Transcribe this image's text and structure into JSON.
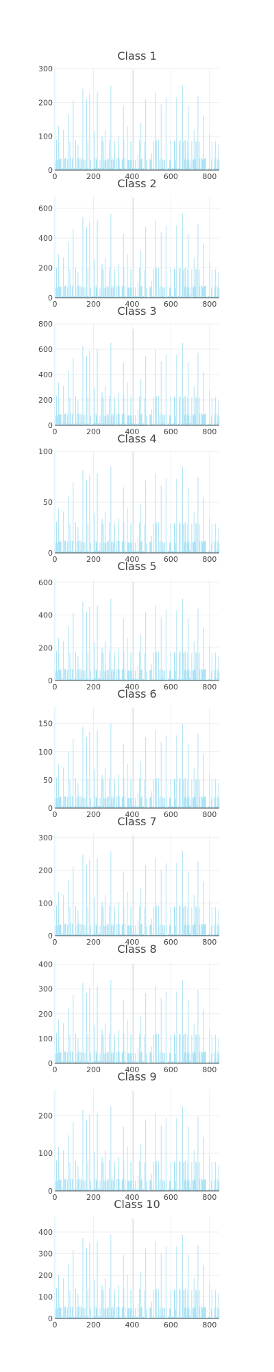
{
  "colors": {
    "bar": "#a9e2f5",
    "bar_strong": "#7fd2ee",
    "grid": "#eeeeee",
    "axis": "#444444",
    "text": "#444444"
  },
  "chart_data": [
    {
      "type": "bar",
      "title": "Class 1",
      "xlabel": "",
      "ylabel": "",
      "xlim": [
        0,
        850
      ],
      "ylim": [
        0,
        300
      ],
      "xticks": [
        0,
        200,
        400,
        600,
        800
      ],
      "yticks": [
        0,
        100,
        200,
        300
      ],
      "peak": 295,
      "scale": 1.0,
      "grid": true
    },
    {
      "type": "bar",
      "title": "Class 2",
      "xlabel": "",
      "ylabel": "",
      "xlim": [
        0,
        850
      ],
      "ylim": [
        0,
        680
      ],
      "xticks": [
        0,
        200,
        400,
        600,
        800
      ],
      "yticks": [
        0,
        200,
        400,
        600
      ],
      "peak": 665,
      "scale": 2.25,
      "grid": true
    },
    {
      "type": "bar",
      "title": "Class 3",
      "xlabel": "",
      "ylabel": "",
      "xlim": [
        0,
        850
      ],
      "ylim": [
        0,
        800
      ],
      "xticks": [
        0,
        200,
        400,
        600,
        800
      ],
      "yticks": [
        0,
        200,
        400,
        600,
        800
      ],
      "peak": 760,
      "scale": 2.6,
      "grid": true
    },
    {
      "type": "bar",
      "title": "Class 4",
      "xlabel": "",
      "ylabel": "",
      "xlim": [
        0,
        850
      ],
      "ylim": [
        0,
        100
      ],
      "xticks": [
        0,
        200,
        400,
        600,
        800
      ],
      "yticks": [
        0,
        50,
        100
      ],
      "peak": 100,
      "scale": 0.34,
      "grid": true
    },
    {
      "type": "bar",
      "title": "Class 5",
      "xlabel": "",
      "ylabel": "",
      "xlim": [
        0,
        850
      ],
      "ylim": [
        0,
        620
      ],
      "xticks": [
        0,
        200,
        400,
        600,
        800
      ],
      "yticks": [
        0,
        200,
        400,
        600
      ],
      "peak": 600,
      "scale": 2.0,
      "grid": true
    },
    {
      "type": "bar",
      "title": "Class 6",
      "xlabel": "",
      "ylabel": "",
      "xlim": [
        0,
        850
      ],
      "ylim": [
        0,
        180
      ],
      "xticks": [
        0,
        200,
        400,
        600,
        800
      ],
      "yticks": [
        0,
        50,
        100,
        150
      ],
      "peak": 178,
      "scale": 0.6,
      "grid": true
    },
    {
      "type": "bar",
      "title": "Class 7",
      "xlabel": "",
      "ylabel": "",
      "xlim": [
        0,
        850
      ],
      "ylim": [
        0,
        310
      ],
      "xticks": [
        0,
        200,
        400,
        600,
        800
      ],
      "yticks": [
        0,
        100,
        200,
        300
      ],
      "peak": 305,
      "scale": 1.03,
      "grid": true
    },
    {
      "type": "bar",
      "title": "Class 8",
      "xlabel": "",
      "ylabel": "",
      "xlim": [
        0,
        850
      ],
      "ylim": [
        0,
        410
      ],
      "xticks": [
        0,
        200,
        400,
        600,
        800
      ],
      "yticks": [
        0,
        100,
        200,
        300,
        400
      ],
      "peak": 400,
      "scale": 1.35,
      "grid": true
    },
    {
      "type": "bar",
      "title": "Class 9",
      "xlabel": "",
      "ylabel": "",
      "xlim": [
        0,
        850
      ],
      "ylim": [
        0,
        270
      ],
      "xticks": [
        0,
        200,
        400,
        600,
        800
      ],
      "yticks": [
        0,
        100,
        200
      ],
      "peak": 265,
      "scale": 0.9,
      "grid": true
    },
    {
      "type": "bar",
      "title": "Class 10",
      "xlabel": "",
      "ylabel": "",
      "xlim": [
        0,
        850
      ],
      "ylim": [
        0,
        470
      ],
      "xticks": [
        0,
        200,
        400,
        600,
        800
      ],
      "yticks": [
        0,
        100,
        200,
        300,
        400
      ],
      "peak": 460,
      "scale": 1.55,
      "grid": true
    }
  ]
}
